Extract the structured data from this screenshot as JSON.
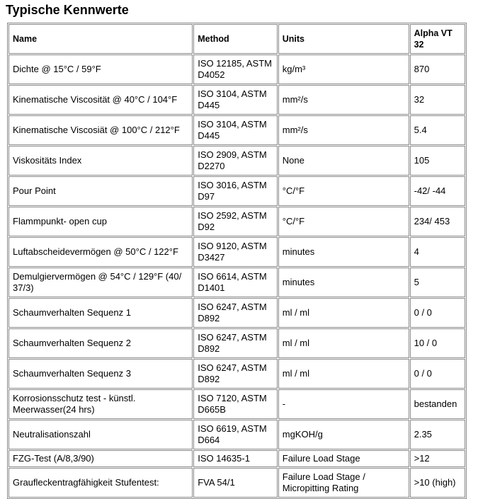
{
  "title": "Typische Kennwerte",
  "table": {
    "header": [
      "Name",
      "Method",
      "Units",
      "Alpha VT 32"
    ],
    "rows": [
      [
        "Dichte @ 15°C / 59°F",
        "ISO 12185, ASTM D4052",
        "kg/m³",
        "870"
      ],
      [
        "Kinematische Viscosität @ 40°C / 104°F",
        "ISO 3104, ASTM D445",
        "mm²/s",
        "32"
      ],
      [
        "Kinematische Viscosiät @ 100°C / 212°F",
        "ISO 3104, ASTM D445",
        "mm²/s",
        "5.4"
      ],
      [
        "Viskositäts Index",
        "ISO 2909, ASTM D2270",
        "None",
        "105"
      ],
      [
        "Pour Point",
        "ISO 3016, ASTM D97",
        "°C/°F",
        "-42/ -44"
      ],
      [
        "Flammpunkt- open cup",
        "ISO 2592, ASTM D92",
        "°C/°F",
        "234/ 453"
      ],
      [
        "Luftabscheidevermögen @ 50°C / 122°F",
        "ISO 9120, ASTM D3427",
        "minutes",
        "4"
      ],
      [
        "Demulgiervermögen @ 54°C / 129°F (40/ 37/3)",
        "ISO 6614, ASTM D1401",
        "minutes",
        "5"
      ],
      [
        "Schaumverhalten Sequenz 1",
        "ISO 6247, ASTM D892",
        "ml / ml",
        "0 / 0"
      ],
      [
        "Schaumverhalten Sequenz 2",
        "ISO 6247, ASTM D892",
        "ml / ml",
        "10 / 0"
      ],
      [
        "Schaumverhalten Sequenz 3",
        "ISO 6247, ASTM D892",
        "ml / ml",
        "0 / 0"
      ],
      [
        "Korrosionsschutz test - künstl. Meerwasser(24 hrs)",
        "ISO 7120, ASTM D665B",
        "-",
        "bestanden"
      ],
      [
        "Neutralisationszahl",
        "ISO 6619, ASTM D664",
        "mgKOH/g",
        "2.35"
      ],
      [
        "FZG-Test (A/8,3/90)",
        "ISO 14635-1",
        "Failure Load Stage",
        ">12"
      ],
      [
        "Graufleckentragfähigkeit Stufentest:",
        "FVA 54/1",
        "Failure Load Stage / Micropitting Rating",
        ">10 (high)"
      ]
    ]
  }
}
